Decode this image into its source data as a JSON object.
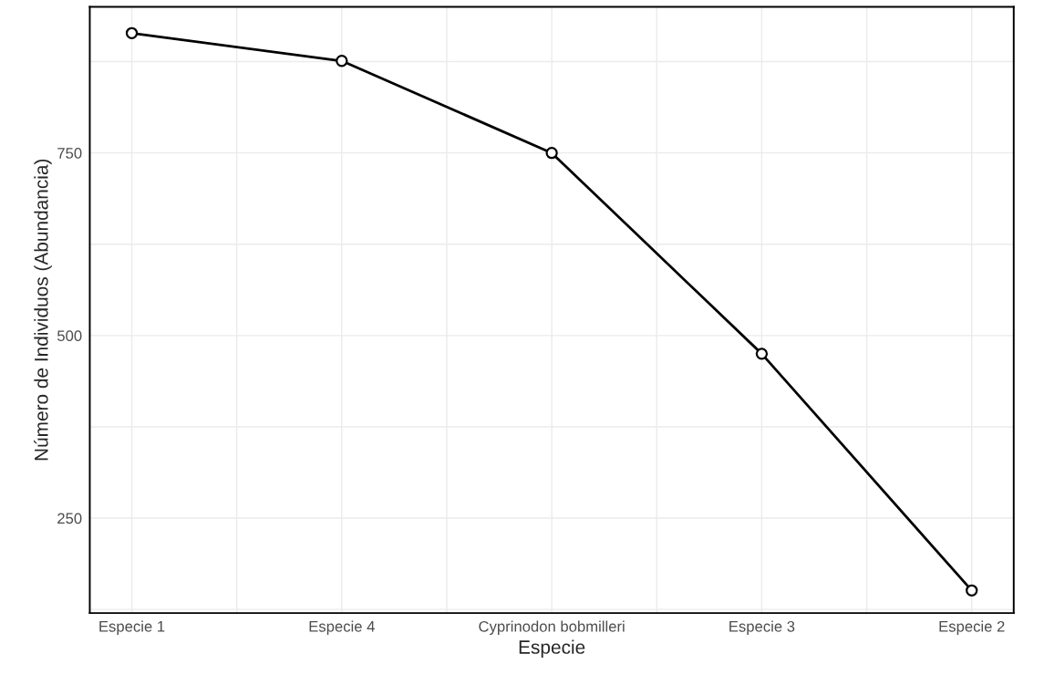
{
  "chart_data": {
    "type": "line",
    "xlabel": "Especie",
    "ylabel": "Número de Individuos (Abundancia)",
    "categories": [
      "Especie 1",
      "Especie 4",
      "Cyprinodon bobmilleri",
      "Especie 3",
      "Especie 2"
    ],
    "series": [
      {
        "color": "#000000",
        "values": [
          914,
          876,
          750,
          475,
          151
        ]
      }
    ],
    "ylim": [
      120,
      950
    ],
    "yticks": [
      {
        "value": 125,
        "label": null
      },
      250,
      {
        "value": 375,
        "label": null
      },
      500,
      {
        "value": 625,
        "label": null
      },
      750,
      {
        "value": 875,
        "label": null
      }
    ],
    "grid": true,
    "marker": "circle",
    "line_style": "solid"
  }
}
